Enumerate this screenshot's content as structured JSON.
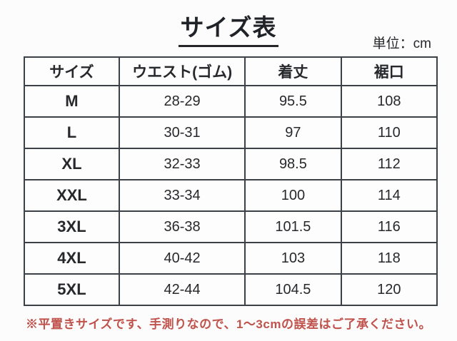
{
  "chart_data": {
    "type": "table",
    "title": "サイズ表",
    "unit_label": "単位：cm",
    "columns": [
      "サイズ",
      "ウエスト(ゴム)",
      "着丈",
      "裾口"
    ],
    "rows": [
      [
        "M",
        "28-29",
        "95.5",
        "108"
      ],
      [
        "L",
        "30-31",
        "97",
        "110"
      ],
      [
        "XL",
        "32-33",
        "98.5",
        "112"
      ],
      [
        "XXL",
        "33-34",
        "100",
        "114"
      ],
      [
        "3XL",
        "36-38",
        "101.5",
        "116"
      ],
      [
        "4XL",
        "40-42",
        "103",
        "118"
      ],
      [
        "5XL",
        "42-44",
        "104.5",
        "120"
      ]
    ]
  },
  "note": "※平置きサイズです、手測りなので、1～3cmの誤差はご了承ください。",
  "colors": {
    "note_red": "#c0524c",
    "table_border": "#3c4047",
    "text": "#26282b",
    "background": "#fcfcfc"
  }
}
